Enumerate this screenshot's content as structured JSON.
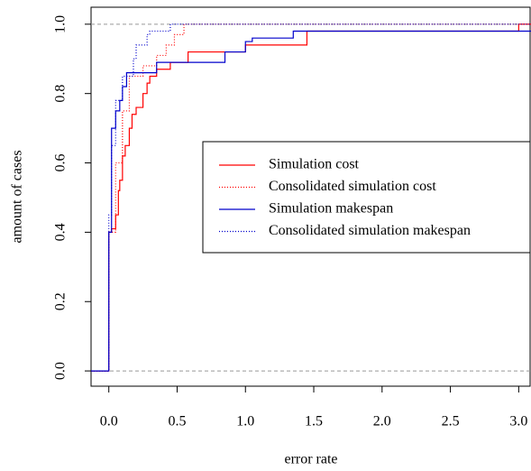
{
  "chart_data": {
    "type": "step",
    "x_label": "error rate",
    "y_label": "amount of cases",
    "xlim": [
      -0.13,
      3.09
    ],
    "ylim": [
      -0.044,
      1.049
    ],
    "xticks": [
      {
        "value": 0,
        "label": "0.0"
      },
      0.5,
      {
        "value": 1,
        "label": "1.0"
      },
      1.5,
      {
        "value": 2,
        "label": "2.0"
      },
      2.5,
      {
        "value": 3,
        "label": "3.0"
      }
    ],
    "yticks": [
      {
        "value": 0,
        "label": "0.0"
      },
      0.2,
      0.4,
      0.6,
      0.8,
      {
        "value": 1,
        "label": "1.0"
      }
    ],
    "hlines": [
      0,
      1
    ],
    "hline_color": "#999999",
    "series": [
      {
        "name": "Simulation cost",
        "color": "#ff0000",
        "dash": "solid",
        "x": [
          -0.13,
          0,
          0.02,
          0.05,
          0.07,
          0.08,
          0.1,
          0.12,
          0.15,
          0.17,
          0.2,
          0.25,
          0.28,
          0.3,
          0.35,
          0.45,
          0.58,
          1.0,
          1.3,
          1.45,
          3.0,
          3.09
        ],
        "values": [
          0,
          0.4,
          0.41,
          0.45,
          0.52,
          0.55,
          0.62,
          0.65,
          0.7,
          0.74,
          0.76,
          0.8,
          0.83,
          0.85,
          0.87,
          0.89,
          0.92,
          0.94,
          0.94,
          0.98,
          1.0,
          1.0
        ]
      },
      {
        "name": "Consolidated simulation cost",
        "color": "#ff0000",
        "dash": "dotted",
        "x": [
          -0.13,
          0,
          0.05,
          0.1,
          0.15,
          0.25,
          0.35,
          0.42,
          0.48,
          0.55,
          3.09
        ],
        "values": [
          0,
          0.4,
          0.6,
          0.75,
          0.85,
          0.88,
          0.91,
          0.94,
          0.97,
          1.0,
          1.0
        ]
      },
      {
        "name": "Simulation makespan",
        "color": "#0000cc",
        "dash": "solid",
        "x": [
          -0.13,
          0,
          0.02,
          0.05,
          0.08,
          0.1,
          0.13,
          0.35,
          0.75,
          0.85,
          1.0,
          1.05,
          1.35,
          3.09
        ],
        "values": [
          0,
          0.4,
          0.7,
          0.75,
          0.78,
          0.82,
          0.86,
          0.89,
          0.89,
          0.92,
          0.95,
          0.96,
          0.98,
          0.98
        ]
      },
      {
        "name": "Consolidated simulation makespan",
        "color": "#0000cc",
        "dash": "dotted",
        "x": [
          -0.13,
          0,
          0.02,
          0.05,
          0.1,
          0.18,
          0.2,
          0.28,
          0.3,
          0.45,
          3.09
        ],
        "values": [
          0,
          0.45,
          0.65,
          0.78,
          0.85,
          0.9,
          0.94,
          0.97,
          0.98,
          1.0,
          1.0
        ]
      }
    ]
  }
}
